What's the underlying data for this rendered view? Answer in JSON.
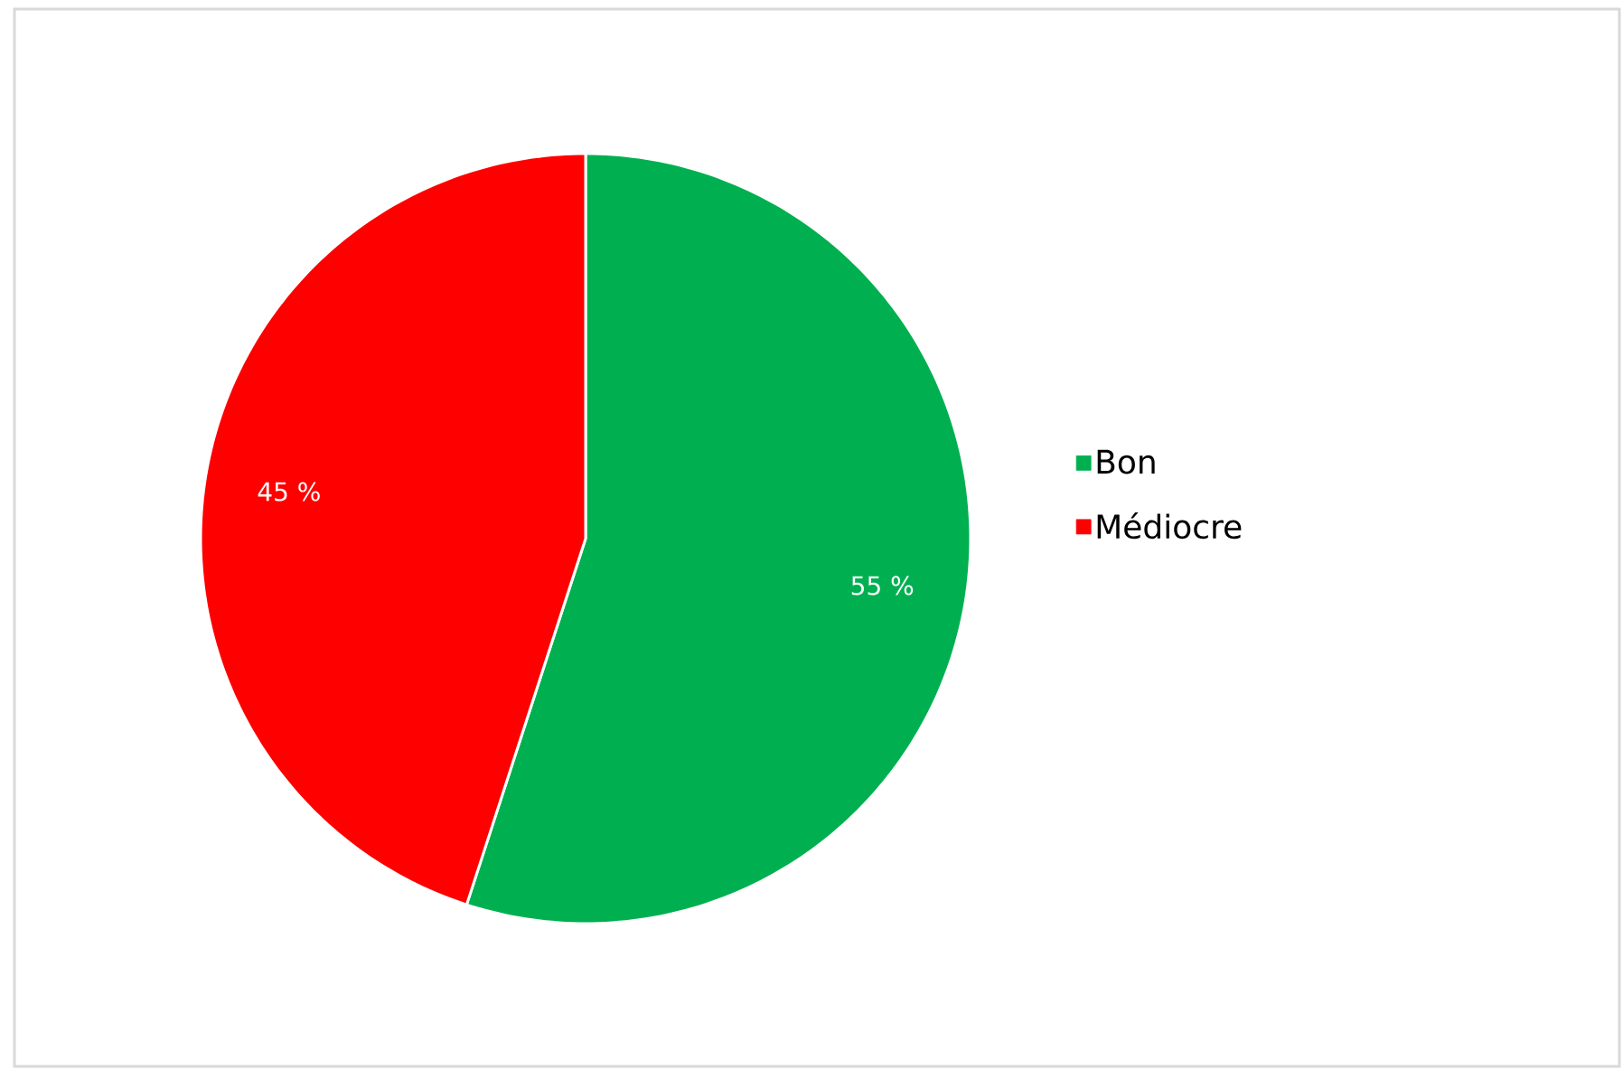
{
  "chart_data": {
    "type": "pie",
    "categories": [
      "Bon",
      "Médiocre"
    ],
    "values": [
      55,
      45
    ],
    "colors": [
      "#00b050",
      "#ff0000"
    ],
    "value_labels": [
      "55 %",
      "45 %"
    ],
    "legend": "right"
  }
}
